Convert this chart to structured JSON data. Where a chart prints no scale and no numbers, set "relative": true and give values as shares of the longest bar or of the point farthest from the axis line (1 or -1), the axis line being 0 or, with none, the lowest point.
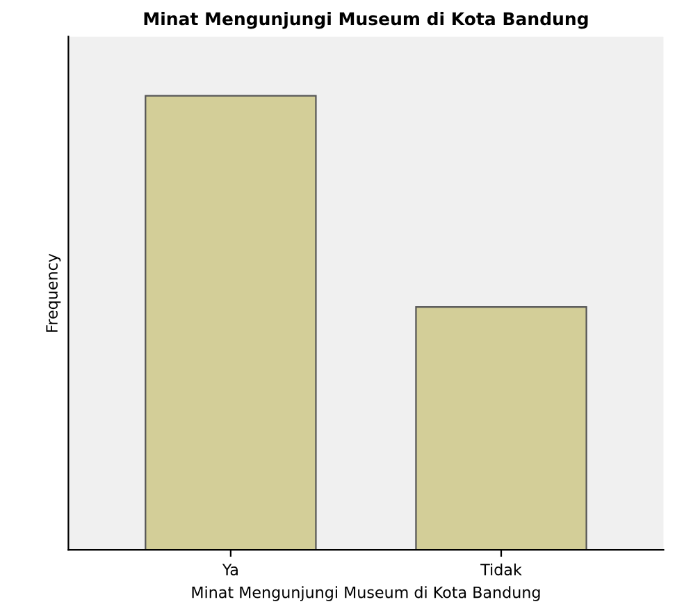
{
  "chart_data": {
    "type": "bar",
    "title": "Minat Mengunjungi Museum di Kota Bandung",
    "xlabel": "Minat Mengunjungi Museum di Kota Bandung",
    "ylabel": "Frequency",
    "categories": [
      "Ya",
      "Tidak"
    ],
    "values": [
      1,
      0.535
    ],
    "color": "#d3ce98",
    "relative": true,
    "grid": false,
    "legend": false
  }
}
